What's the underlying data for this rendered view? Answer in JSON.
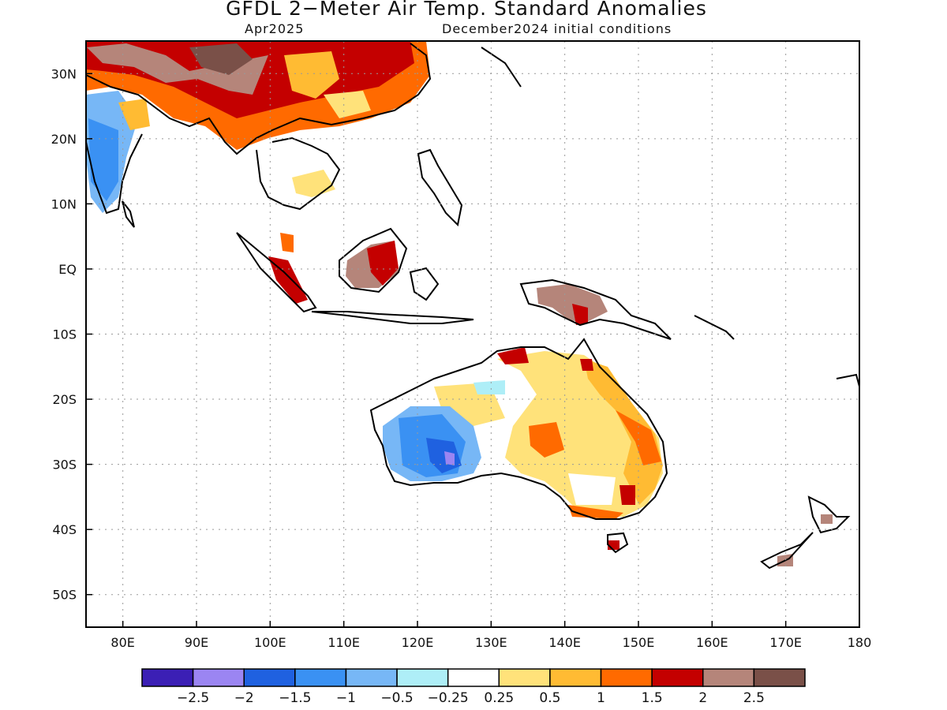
{
  "title": "GFDL 2−Meter Air Temp. Standard Anomalies",
  "valid_month": "Apr2025",
  "init_conditions": "December2024 initial conditions",
  "axes": {
    "lat_labels": [
      "30N",
      "20N",
      "10N",
      "EQ",
      "10S",
      "20S",
      "30S",
      "40S",
      "50S"
    ],
    "lon_labels": [
      "80E",
      "90E",
      "100E",
      "110E",
      "120E",
      "130E",
      "140E",
      "150E",
      "160E",
      "170E",
      "180"
    ],
    "lat_range": [
      -55,
      35
    ],
    "lon_range": [
      75,
      180
    ],
    "grid": "dotted"
  },
  "colorbar": {
    "colors": [
      "#3b1fb5",
      "#9b85f2",
      "#1f61e0",
      "#3a91f3",
      "#77b7f6",
      "#aeeef7",
      "#ffffff",
      "#ffe27a",
      "#ffbb33",
      "#ff6a00",
      "#c40000",
      "#b5857a",
      "#7a5048"
    ],
    "labels": [
      "−2.5",
      "−2",
      "−1.5",
      "−1",
      "−0.5",
      "−0.25",
      "0.25",
      "0.5",
      "1",
      "1.5",
      "2",
      "2.5"
    ]
  },
  "legend_position": "bottom"
}
